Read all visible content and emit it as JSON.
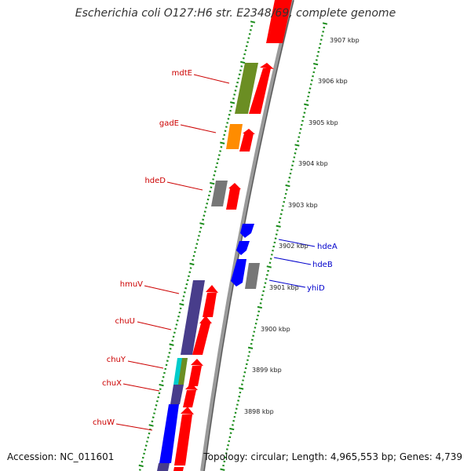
{
  "title": "Escherichia coli O127:H6 str. E2348/69, complete genome",
  "footer": {
    "accession": "Accession: NC_011601",
    "topology": "Topology: circular; Length: 4,965,553 bp; Genes: 4,739"
  },
  "colors": {
    "background": "#ffffff",
    "forward_cds": "#ff0000",
    "reverse_cds": "#0000ff",
    "label_forward": "#cc0000",
    "label_reverse": "#0000cc",
    "backbone": "#888888",
    "tick_dots": "#1a8c1a",
    "olive": "#6b8e23",
    "orange": "#ff8c00",
    "gray": "#777777",
    "navy": "#483d8b",
    "cyan": "#00cccc"
  },
  "kbp_labels": [
    "3907 kbp",
    "3906 kbp",
    "3905 kbp",
    "3904 kbp",
    "3903 kbp",
    "3902 kbp",
    "3901 kbp",
    "3900 kbp",
    "3899 kbp",
    "3898 kbp"
  ],
  "gene_labels_left": [
    "mdtE",
    "gadE",
    "hdeD",
    "hmuV",
    "chuU",
    "chuY",
    "chuX",
    "chuW"
  ],
  "gene_labels_right": [
    "hdeA",
    "hdeB",
    "yhiD"
  ]
}
